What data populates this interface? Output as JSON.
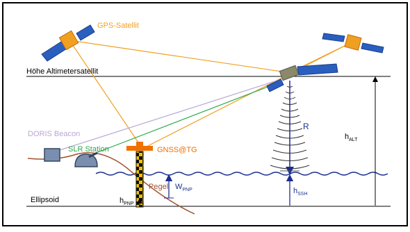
{
  "labels": {
    "gps_satellite": "GPS-Satellit",
    "altimeter_height": "Höhe Altimetersatellit",
    "doris_beacon": "DORIS Beacon",
    "slr_station": "SLR Station",
    "gnss_tg": "GNSS@TG",
    "pegel": "Pegel",
    "ellipsoid": "Ellipsoid",
    "range": "R",
    "h_alt_main": "h",
    "h_alt_sub": "ALT",
    "h_ssh_main": "h",
    "h_ssh_sub": "SSH",
    "h_pnp_main": "h",
    "h_pnp_sub": "PNP",
    "w_pnp_main": "W",
    "w_pnp_sub": "PNP"
  },
  "colors": {
    "gps_orange": "#f0a020",
    "gnss_orange": "#f07000",
    "doris": "#b8a6d6",
    "slr_green": "#2aa84a",
    "water_blue": "#1a2f8f",
    "ground_brown": "#a0522d",
    "solar_blue": "#2a5fc0",
    "black": "#000000"
  }
}
